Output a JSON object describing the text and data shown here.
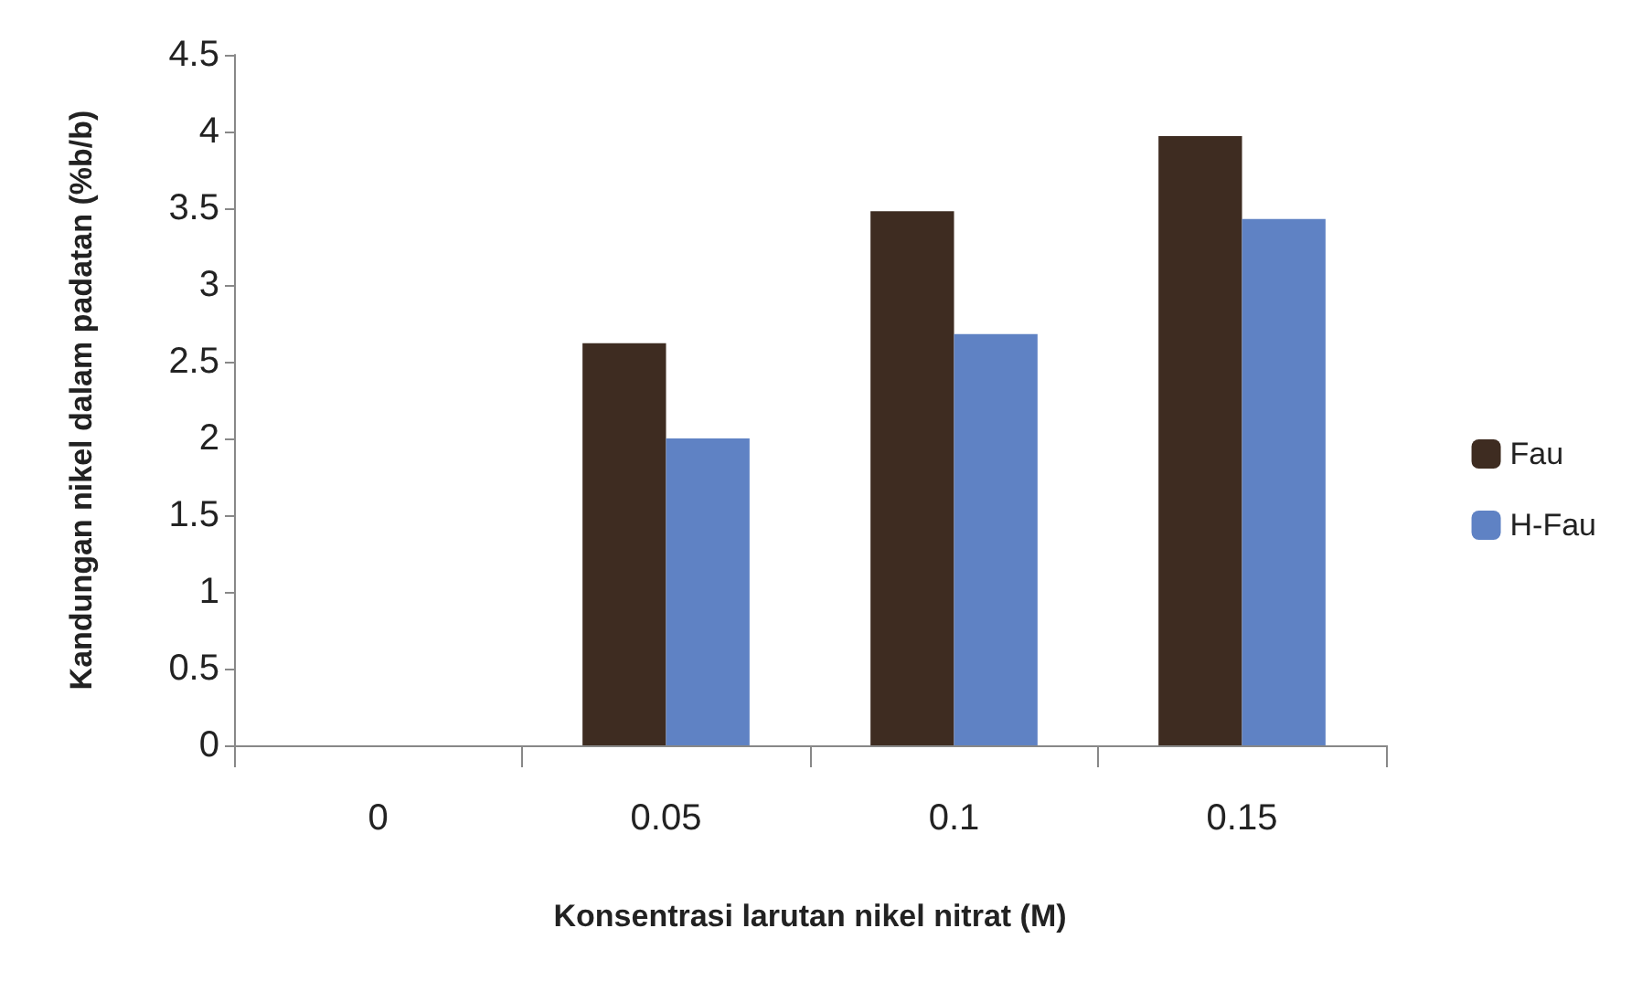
{
  "chart_data": {
    "type": "bar",
    "xlabel": "Konsentrasi larutan nikel nitrat (M)",
    "ylabel": "Kandungan nikel dalam padatan (%b/b)",
    "categories": [
      "0",
      "0.05",
      "0.1",
      "0.15"
    ],
    "series": [
      {
        "name": "Fau",
        "color": "#3e2c21",
        "values": [
          0,
          2.62,
          3.48,
          3.97
        ]
      },
      {
        "name": "H-Fau",
        "color": "#5f82c4",
        "values": [
          0,
          2.0,
          2.68,
          3.43
        ]
      }
    ],
    "ylim": [
      0,
      4.5
    ],
    "yticks": [
      0,
      0.5,
      1,
      1.5,
      2,
      2.5,
      3,
      3.5,
      4,
      4.5
    ],
    "grid": false,
    "legend": "right"
  }
}
